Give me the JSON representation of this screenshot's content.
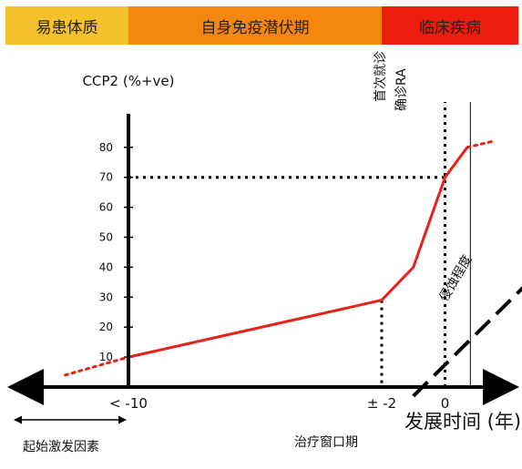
{
  "phases": [
    {
      "label": "易患体质",
      "color": "#f4c12a"
    },
    {
      "label": "自身免疫潜伏期",
      "color": "#f5860f"
    },
    {
      "label": "临床疾病",
      "color": "#ec1d0f"
    }
  ],
  "annotations": {
    "first_visit": "首次就诊",
    "diagnosis": "确诊RA",
    "erosion": "侵蚀程度",
    "trigger": "起始激发因素",
    "treatment_window": "治疗窗口期"
  },
  "colors": {
    "curve": "#e8211a",
    "axis": "#000000",
    "guide": "#000000"
  },
  "chart_data": {
    "type": "line",
    "title": "",
    "ylabel": "CCP2 (%+ve)",
    "xlabel": "发展时间 (年)",
    "ylim": [
      0,
      85
    ],
    "yticks": [
      "10",
      "20",
      "30",
      "40",
      "50",
      "60",
      "70",
      "80"
    ],
    "xticks": [
      {
        "label": "< -10",
        "x": -10
      },
      {
        "label": "± -2",
        "x": -2
      },
      {
        "label": "0",
        "x": 0
      }
    ],
    "series": [
      {
        "values": [
          [
            -10,
            10
          ],
          [
            -2,
            29
          ],
          [
            -1,
            40
          ],
          [
            0,
            70
          ],
          [
            0.7,
            80
          ]
        ],
        "extrapolated_before": [
          [
            -12,
            4
          ],
          [
            -10,
            10
          ]
        ],
        "extrapolated_after": [
          [
            0.7,
            80
          ],
          [
            1.5,
            82
          ]
        ]
      }
    ],
    "erosion_line": [
      [
        -1,
        -3
      ],
      [
        3.5,
        44
      ]
    ],
    "reference_lines": {
      "horizontal_y": 70,
      "vertical_x": [
        -2,
        0,
        0.8
      ]
    }
  }
}
